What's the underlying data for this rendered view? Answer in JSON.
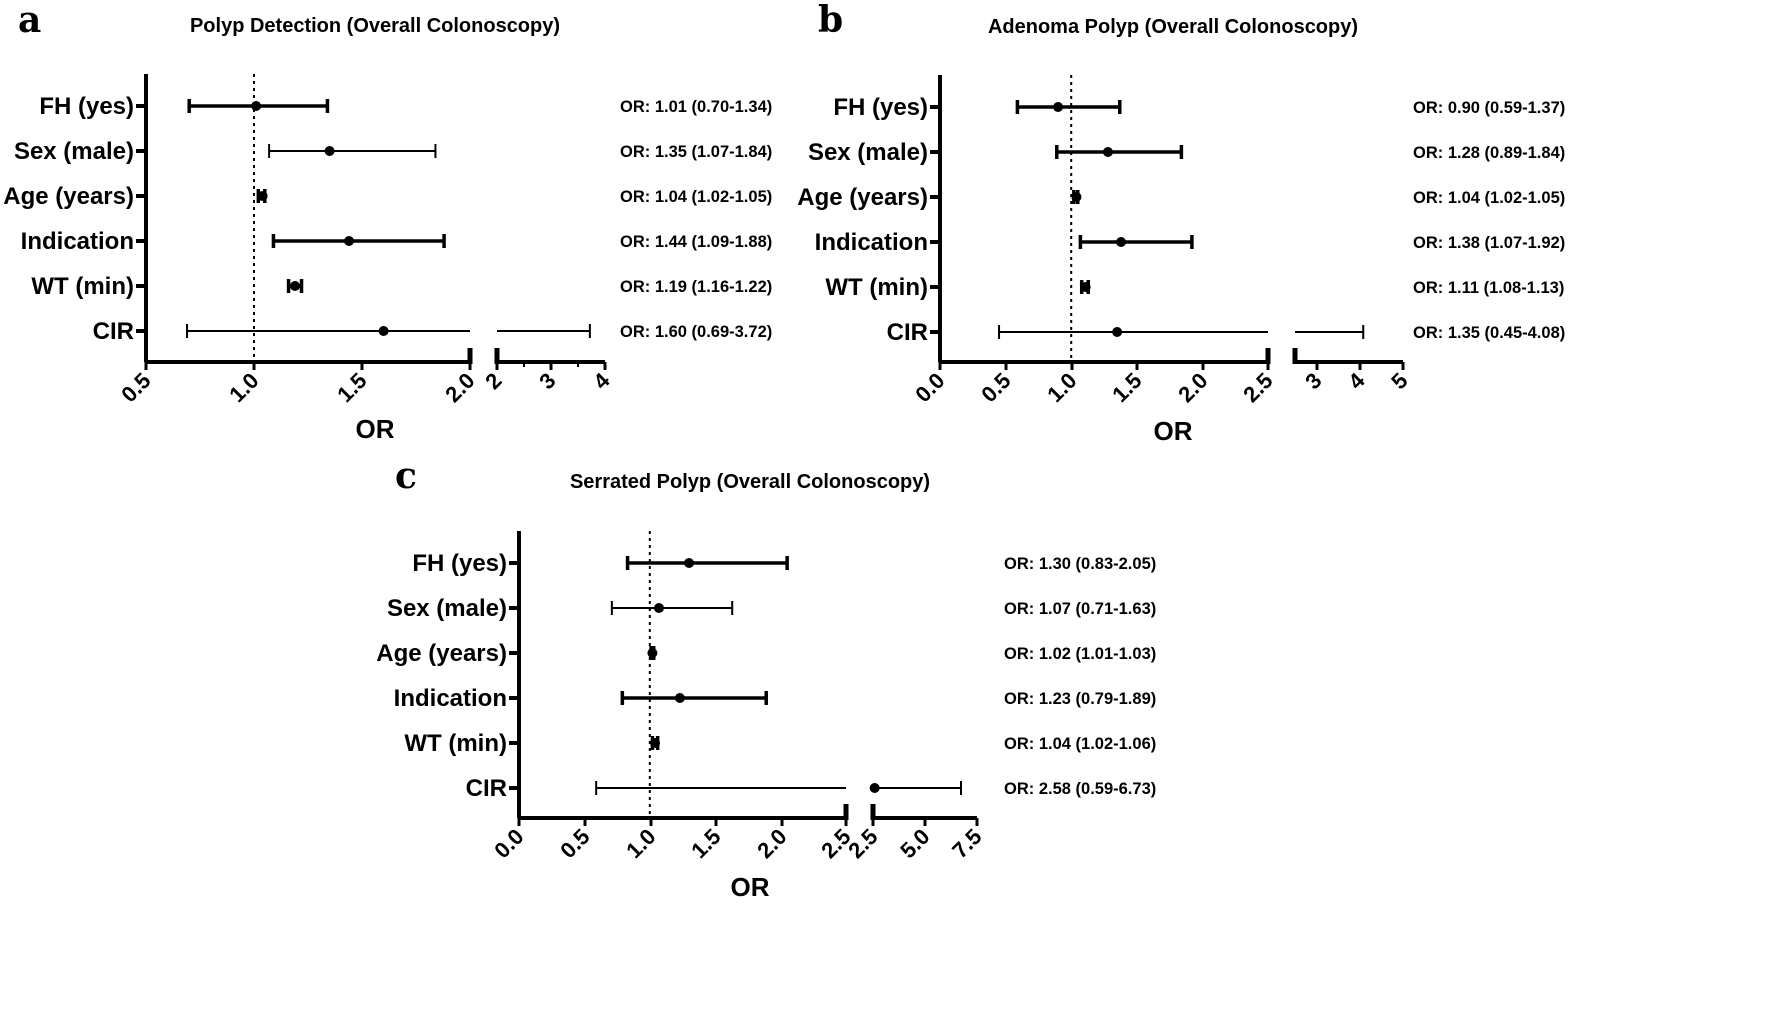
{
  "chart_data": [
    {
      "type": "forest",
      "panel_label": "a",
      "title": "Polyp Detection (Overall Colonoscopy)",
      "xlabel": "OR",
      "reference_line": 1.0,
      "axis_segments": [
        {
          "range": [
            0.5,
            2.0
          ],
          "ticks": [
            "0.5",
            "1.0",
            "1.5",
            "2.0"
          ]
        },
        {
          "range": [
            2,
            4
          ],
          "ticks": [
            "2",
            "3",
            "4"
          ]
        }
      ],
      "categories": [
        "FH (yes)",
        "Sex (male)",
        "Age (years)",
        "Indication",
        "WT (min)",
        "CIR"
      ],
      "or": [
        1.01,
        1.35,
        1.04,
        1.44,
        1.19,
        1.6
      ],
      "lower": [
        0.7,
        1.07,
        1.02,
        1.09,
        1.16,
        0.69
      ],
      "upper": [
        1.34,
        1.84,
        1.05,
        1.88,
        1.22,
        3.72
      ],
      "thick": [
        true,
        false,
        true,
        true,
        true,
        false
      ],
      "labels": [
        "OR: 1.01 (0.70-1.34)",
        "OR: 1.35 (1.07-1.84)",
        "OR: 1.04 (1.02-1.05)",
        "OR: 1.44 (1.09-1.88)",
        "OR: 1.19 (1.16-1.22)",
        "OR: 1.60 (0.69-3.72)"
      ]
    },
    {
      "type": "forest",
      "panel_label": "b",
      "title": "Adenoma Polyp (Overall Colonoscopy)",
      "xlabel": "OR",
      "reference_line": 1.0,
      "axis_segments": [
        {
          "range": [
            0.0,
            2.5
          ],
          "ticks": [
            "0.0",
            "0.5",
            "1.0",
            "1.5",
            "2.0",
            "2.5"
          ]
        },
        {
          "range": [
            2.5,
            5
          ],
          "ticks": [
            "3",
            "4",
            "5"
          ]
        }
      ],
      "categories": [
        "FH (yes)",
        "Sex (male)",
        "Age (years)",
        "Indication",
        "WT (min)",
        "CIR"
      ],
      "or": [
        0.9,
        1.28,
        1.04,
        1.38,
        1.11,
        1.35
      ],
      "lower": [
        0.59,
        0.89,
        1.02,
        1.07,
        1.08,
        0.45
      ],
      "upper": [
        1.37,
        1.84,
        1.05,
        1.92,
        1.13,
        4.08
      ],
      "thick": [
        true,
        true,
        true,
        true,
        true,
        false
      ],
      "labels": [
        "OR: 0.90 (0.59-1.37)",
        "OR: 1.28 (0.89-1.84)",
        "OR: 1.04 (1.02-1.05)",
        "OR: 1.38 (1.07-1.92)",
        "OR: 1.11 (1.08-1.13)",
        "OR: 1.35 (0.45-4.08)"
      ]
    },
    {
      "type": "forest",
      "panel_label": "c",
      "title": "Serrated Polyp (Overall Colonoscopy)",
      "xlabel": "OR",
      "reference_line": 1.0,
      "axis_segments": [
        {
          "range": [
            0.0,
            2.5
          ],
          "ticks": [
            "0.0",
            "0.5",
            "1.0",
            "1.5",
            "2.0",
            "2.5"
          ]
        },
        {
          "range": [
            2.5,
            7.5
          ],
          "ticks": [
            "2.5",
            "5.0",
            "7.5"
          ]
        }
      ],
      "categories": [
        "FH (yes)",
        "Sex (male)",
        "Age (years)",
        "Indication",
        "WT (min)",
        "CIR"
      ],
      "or": [
        1.3,
        1.07,
        1.02,
        1.23,
        1.04,
        2.58
      ],
      "lower": [
        0.83,
        0.71,
        1.01,
        0.79,
        1.02,
        0.59
      ],
      "upper": [
        2.05,
        1.63,
        1.03,
        1.89,
        1.06,
        6.73
      ],
      "thick": [
        true,
        false,
        true,
        true,
        true,
        false
      ],
      "labels": [
        "OR: 1.30 (0.83-2.05)",
        "OR: 1.07 (0.71-1.63)",
        "OR: 1.02 (1.01-1.03)",
        "OR: 1.23 (0.79-1.89)",
        "OR: 1.04 (1.02-1.06)",
        "OR: 2.58 (0.59-6.73)"
      ]
    }
  ]
}
